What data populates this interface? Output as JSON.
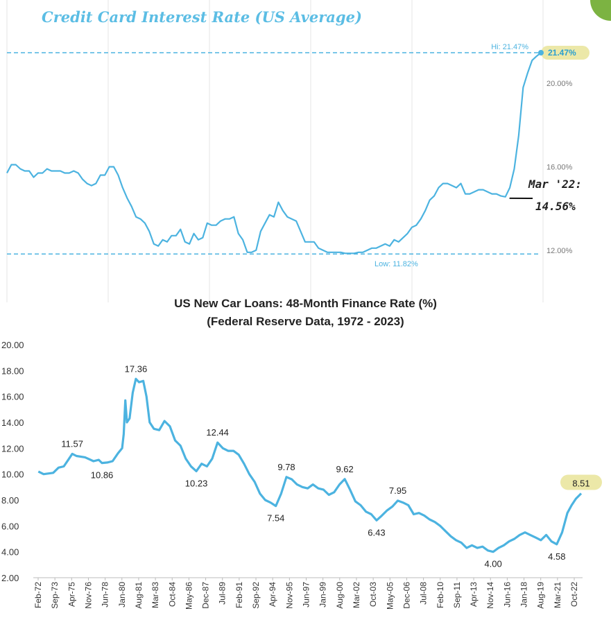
{
  "chart_data": [
    {
      "type": "line",
      "title": "Credit Card Interest Rate (US Average)",
      "y_ticks": [
        "12.00%",
        "16.00%",
        "20.00%"
      ],
      "ylim": [
        9.5,
        23.0
      ],
      "grid": "vertical",
      "series": [
        {
          "values": [
            15.7,
            16.1,
            16.1,
            15.9,
            15.8,
            15.8,
            15.5,
            15.7,
            15.7,
            15.9,
            15.8,
            15.8,
            15.8,
            15.7,
            15.7,
            15.8,
            15.7,
            15.4,
            15.2,
            15.1,
            15.2,
            15.6,
            15.6,
            16.0,
            16.0,
            15.6,
            15.0,
            14.5,
            14.1,
            13.6,
            13.5,
            13.3,
            12.9,
            12.3,
            12.2,
            12.5,
            12.4,
            12.7,
            12.7,
            13.0,
            12.4,
            12.3,
            12.8,
            12.5,
            12.6,
            13.3,
            13.2,
            13.2,
            13.4,
            13.5,
            13.5,
            13.6,
            12.8,
            12.5,
            11.9,
            11.9,
            12.0,
            12.9,
            13.3,
            13.7,
            13.6,
            14.3,
            13.9,
            13.6,
            13.5,
            13.4,
            12.9,
            12.4,
            12.4,
            12.4,
            12.1,
            12.0,
            11.9,
            11.9,
            11.9,
            11.9,
            11.85,
            11.85,
            11.85,
            11.9,
            11.9,
            12.0,
            12.1,
            12.1,
            12.2,
            12.3,
            12.2,
            12.5,
            12.4,
            12.6,
            12.8,
            13.1,
            13.2,
            13.5,
            13.9,
            14.4,
            14.6,
            15.0,
            15.2,
            15.2,
            15.1,
            15.0,
            15.2,
            14.7,
            14.7,
            14.8,
            14.9,
            14.9,
            14.8,
            14.7,
            14.7,
            14.6,
            14.56,
            15.0,
            15.9,
            17.5,
            19.8,
            20.5,
            21.1,
            21.3,
            21.47
          ]
        }
      ],
      "annotations": {
        "hi_label": "Hi: 21.47%",
        "hi_badge": "21.47%",
        "low_label": "Low: 11.82%",
        "hi_value": 21.47,
        "low_value": 11.82,
        "mar22_line1": "Mar '22:",
        "mar22_line2": "14.56%",
        "mar22_index": 112
      }
    },
    {
      "type": "line",
      "title": "US New Car Loans: 48-Month Finance Rate (%)",
      "subtitle": "(Federal Reserve Data, 1972 - 2023)",
      "ylim": [
        2,
        20
      ],
      "y_ticks": [
        "2.00",
        "4.00",
        "6.00",
        "8.00",
        "10.00",
        "12.00",
        "14.00",
        "16.00",
        "18.00",
        "20.00"
      ],
      "x_tick_labels": [
        "Feb-72",
        "Sep-73",
        "Apr-75",
        "Nov-76",
        "Jun-78",
        "Jan-80",
        "Aug-81",
        "Mar-83",
        "Oct-84",
        "May-86",
        "Dec-87",
        "Jul-89",
        "Feb-91",
        "Sep-92",
        "Apr-94",
        "Nov-95",
        "Jun-97",
        "Jan-99",
        "Aug-00",
        "Mar-02",
        "Oct-03",
        "May-05",
        "Dec-06",
        "Jul-08",
        "Feb-10",
        "Sep-11",
        "Apr-13",
        "Nov-14",
        "Jun-16",
        "Jan-18",
        "Aug-19",
        "Mar-21",
        "Oct-22"
      ],
      "x_start": 1972.08,
      "x_end": 2023.3,
      "series": [
        {
          "x": [
            1972.1,
            1972.6,
            1973.5,
            1974.0,
            1974.5,
            1975.0,
            1975.3,
            1975.7,
            1976.5,
            1977.3,
            1977.8,
            1978.1,
            1978.6,
            1979.1,
            1979.6,
            1980.0,
            1980.15,
            1980.3,
            1980.45,
            1980.7,
            1981.0,
            1981.3,
            1981.6,
            1982.0,
            1982.3,
            1982.6,
            1983.0,
            1983.5,
            1984.0,
            1984.5,
            1985.0,
            1985.5,
            1986.0,
            1986.5,
            1987.0,
            1987.5,
            1988.0,
            1988.5,
            1989.0,
            1989.5,
            1990.0,
            1990.5,
            1991.0,
            1991.5,
            1992.0,
            1992.5,
            1993.0,
            1993.5,
            1994.0,
            1994.5,
            1995.0,
            1995.5,
            1996.0,
            1996.5,
            1997.0,
            1997.5,
            1998.0,
            1998.5,
            1999.0,
            1999.5,
            2000.0,
            2000.5,
            2001.0,
            2001.5,
            2002.0,
            2002.5,
            2003.0,
            2003.5,
            2004.0,
            2004.5,
            2005.0,
            2005.5,
            2006.0,
            2006.5,
            2007.0,
            2007.5,
            2008.0,
            2008.5,
            2009.0,
            2009.5,
            2010.0,
            2010.5,
            2011.0,
            2011.5,
            2012.0,
            2012.5,
            2013.0,
            2013.5,
            2014.0,
            2014.5,
            2015.0,
            2015.5,
            2016.0,
            2016.5,
            2017.0,
            2017.5,
            2018.0,
            2018.5,
            2019.0,
            2019.5,
            2020.0,
            2020.5,
            2021.0,
            2021.5,
            2022.0,
            2022.4,
            2022.8,
            2023.3
          ],
          "values": [
            10.2,
            10.0,
            10.1,
            10.5,
            10.6,
            11.2,
            11.57,
            11.4,
            11.3,
            11.0,
            11.1,
            10.86,
            10.9,
            11.0,
            11.6,
            12.0,
            13.1,
            15.7,
            14.0,
            14.3,
            16.3,
            17.36,
            17.1,
            17.2,
            16.0,
            14.0,
            13.5,
            13.4,
            14.1,
            13.7,
            12.6,
            12.2,
            11.2,
            10.6,
            10.23,
            10.8,
            10.6,
            11.2,
            12.44,
            12.0,
            11.8,
            11.8,
            11.5,
            10.8,
            10.0,
            9.4,
            8.5,
            8.0,
            7.8,
            7.54,
            8.5,
            9.78,
            9.6,
            9.2,
            9.0,
            8.9,
            9.2,
            8.9,
            8.8,
            8.4,
            8.6,
            9.2,
            9.62,
            8.8,
            7.9,
            7.6,
            7.1,
            6.9,
            6.43,
            6.8,
            7.2,
            7.5,
            7.95,
            7.8,
            7.6,
            6.9,
            7.0,
            6.8,
            6.5,
            6.3,
            6.0,
            5.6,
            5.2,
            4.9,
            4.7,
            4.3,
            4.5,
            4.3,
            4.4,
            4.1,
            4.0,
            4.3,
            4.5,
            4.8,
            5.0,
            5.3,
            5.5,
            5.3,
            5.1,
            4.9,
            5.3,
            4.8,
            4.58,
            5.5,
            7.0,
            7.6,
            8.1,
            8.51
          ]
        }
      ],
      "annotations": [
        {
          "text": "11.57",
          "x": 1975.3,
          "y": 11.57,
          "pos": "above"
        },
        {
          "text": "10.86",
          "x": 1978.1,
          "y": 10.86,
          "pos": "below"
        },
        {
          "text": "17.36",
          "x": 1981.3,
          "y": 17.36,
          "pos": "above"
        },
        {
          "text": "10.23",
          "x": 1987.0,
          "y": 10.23,
          "pos": "below"
        },
        {
          "text": "12.44",
          "x": 1989.0,
          "y": 12.44,
          "pos": "above"
        },
        {
          "text": "7.54",
          "x": 1994.5,
          "y": 7.54,
          "pos": "below"
        },
        {
          "text": "9.78",
          "x": 1995.5,
          "y": 9.78,
          "pos": "above"
        },
        {
          "text": "9.62",
          "x": 2001.0,
          "y": 9.62,
          "pos": "above"
        },
        {
          "text": "6.43",
          "x": 2004.0,
          "y": 6.43,
          "pos": "below"
        },
        {
          "text": "7.95",
          "x": 2006.0,
          "y": 7.95,
          "pos": "above"
        },
        {
          "text": "4.00",
          "x": 2015.0,
          "y": 4.0,
          "pos": "below"
        },
        {
          "text": "4.58",
          "x": 2021.0,
          "y": 4.58,
          "pos": "below"
        },
        {
          "text": "8.51",
          "x": 2023.3,
          "y": 8.51,
          "pos": "above",
          "highlight": true
        }
      ]
    }
  ],
  "colors": {
    "line": "#4cb3e0",
    "title_cc": "#5bbde4",
    "highlight": "#ece8a8",
    "badge_text": "#2a9fd0"
  }
}
